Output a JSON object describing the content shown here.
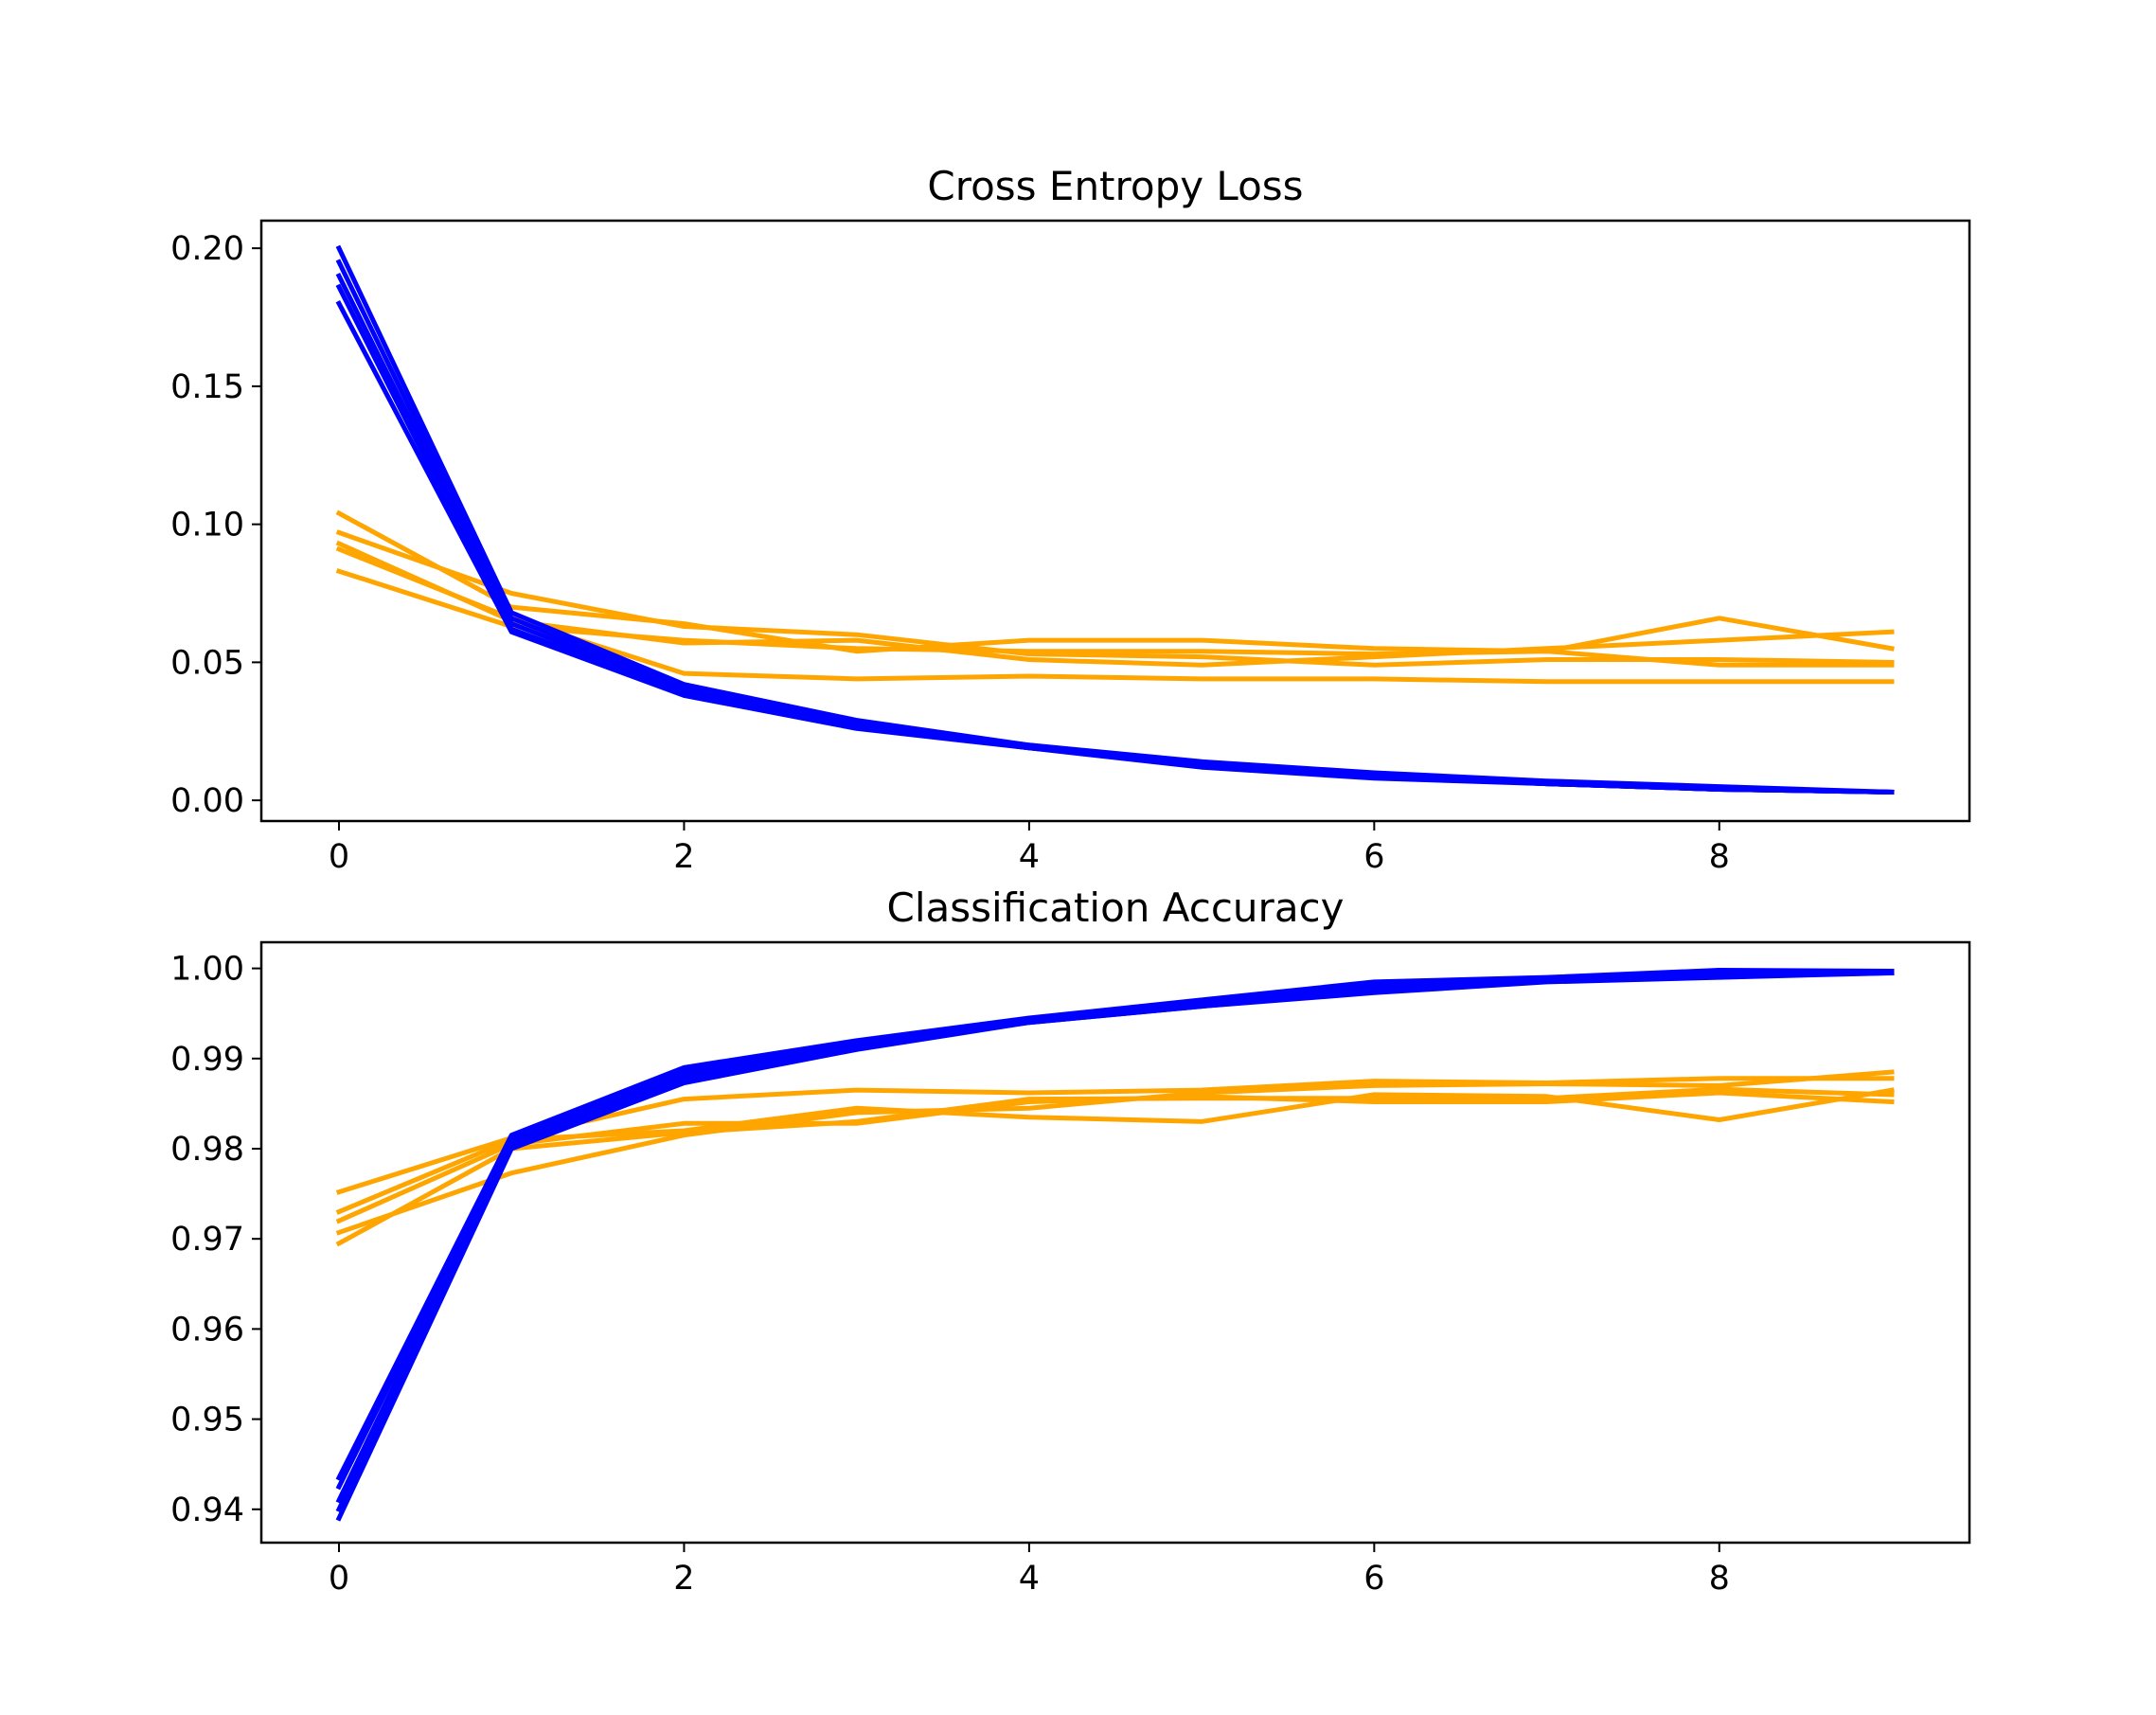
{
  "chart_data": [
    {
      "type": "line",
      "title": "Cross Entropy Loss",
      "xlabel": "",
      "ylabel": "",
      "xlim": [
        -0.45,
        9.45
      ],
      "ylim": [
        -0.0075,
        0.21
      ],
      "xticks": [
        0,
        2,
        4,
        6,
        8
      ],
      "xtick_labels": [
        "0",
        "2",
        "4",
        "6",
        "8"
      ],
      "yticks": [
        0.0,
        0.05,
        0.1,
        0.15,
        0.2
      ],
      "ytick_labels": [
        "0.00",
        "0.05",
        "0.10",
        "0.15",
        "0.20"
      ],
      "grid": false,
      "colors": {
        "train": "#0000ff",
        "test": "#ffa500"
      },
      "x": [
        0,
        1,
        2,
        3,
        4,
        5,
        6,
        7,
        8,
        9
      ],
      "series": [
        {
          "group": "train",
          "values": [
            0.2,
            0.068,
            0.042,
            0.029,
            0.02,
            0.014,
            0.01,
            0.007,
            0.005,
            0.003
          ]
        },
        {
          "group": "train",
          "values": [
            0.195,
            0.066,
            0.041,
            0.028,
            0.02,
            0.013,
            0.009,
            0.006,
            0.004,
            0.003
          ]
        },
        {
          "group": "train",
          "values": [
            0.19,
            0.064,
            0.04,
            0.027,
            0.019,
            0.013,
            0.009,
            0.006,
            0.004,
            0.003
          ]
        },
        {
          "group": "train",
          "values": [
            0.186,
            0.062,
            0.039,
            0.027,
            0.019,
            0.013,
            0.009,
            0.006,
            0.004,
            0.003
          ]
        },
        {
          "group": "train",
          "values": [
            0.18,
            0.061,
            0.038,
            0.026,
            0.019,
            0.012,
            0.008,
            0.006,
            0.004,
            0.003
          ]
        },
        {
          "group": "test",
          "values": [
            0.104,
            0.07,
            0.064,
            0.054,
            0.058,
            0.058,
            0.055,
            0.054,
            0.066,
            0.055
          ]
        },
        {
          "group": "test",
          "values": [
            0.097,
            0.075,
            0.063,
            0.06,
            0.053,
            0.052,
            0.049,
            0.051,
            0.051,
            0.05
          ]
        },
        {
          "group": "test",
          "values": [
            0.093,
            0.065,
            0.057,
            0.058,
            0.051,
            0.049,
            0.052,
            0.055,
            0.058,
            0.061
          ]
        },
        {
          "group": "test",
          "values": [
            0.091,
            0.066,
            0.046,
            0.044,
            0.045,
            0.044,
            0.044,
            0.043,
            0.043,
            0.043
          ]
        },
        {
          "group": "test",
          "values": [
            0.083,
            0.063,
            0.058,
            0.055,
            0.054,
            0.054,
            0.053,
            0.054,
            0.049,
            0.049
          ]
        }
      ]
    },
    {
      "type": "line",
      "title": "Classification Accuracy",
      "xlabel": "",
      "ylabel": "",
      "xlim": [
        -0.45,
        9.45
      ],
      "ylim": [
        0.9363,
        1.0029
      ],
      "xticks": [
        0,
        2,
        4,
        6,
        8
      ],
      "xtick_labels": [
        "0",
        "2",
        "4",
        "6",
        "8"
      ],
      "yticks": [
        0.94,
        0.95,
        0.96,
        0.97,
        0.98,
        0.99,
        1.0
      ],
      "ytick_labels": [
        "0.94",
        "0.95",
        "0.96",
        "0.97",
        "0.98",
        "0.99",
        "1.00"
      ],
      "grid": false,
      "colors": {
        "train": "#0000ff",
        "test": "#ffa500"
      },
      "x": [
        0,
        1,
        2,
        3,
        4,
        5,
        6,
        7,
        8,
        9
      ],
      "series": [
        {
          "group": "train",
          "values": [
            0.9435,
            0.9815,
            0.989,
            0.992,
            0.9945,
            0.9965,
            0.9985,
            0.999,
            0.9998,
            0.9997
          ]
        },
        {
          "group": "train",
          "values": [
            0.9425,
            0.9812,
            0.9885,
            0.9918,
            0.9943,
            0.9962,
            0.9982,
            0.9988,
            0.9995,
            0.9996
          ]
        },
        {
          "group": "train",
          "values": [
            0.941,
            0.9808,
            0.988,
            0.9915,
            0.9941,
            0.996,
            0.9978,
            0.9987,
            0.9993,
            0.9996
          ]
        },
        {
          "group": "train",
          "values": [
            0.94,
            0.9803,
            0.9876,
            0.9913,
            0.994,
            0.9958,
            0.9975,
            0.9986,
            0.9992,
            0.9995
          ]
        },
        {
          "group": "train",
          "values": [
            0.939,
            0.98,
            0.9873,
            0.991,
            0.994,
            0.9958,
            0.9973,
            0.9985,
            0.999,
            0.9995
          ]
        },
        {
          "group": "test",
          "values": [
            0.9752,
            0.9812,
            0.9855,
            0.9865,
            0.9862,
            0.9865,
            0.9875,
            0.9873,
            0.9878,
            0.9878
          ]
        },
        {
          "group": "test",
          "values": [
            0.973,
            0.981,
            0.982,
            0.9845,
            0.9835,
            0.983,
            0.986,
            0.9858,
            0.9832,
            0.9865
          ]
        },
        {
          "group": "test",
          "values": [
            0.972,
            0.9805,
            0.9828,
            0.9828,
            0.9852,
            0.9858,
            0.9852,
            0.9852,
            0.9862,
            0.9852
          ]
        },
        {
          "group": "test",
          "values": [
            0.9707,
            0.9773,
            0.9815,
            0.984,
            0.9845,
            0.9862,
            0.987,
            0.9872,
            0.987,
            0.9885
          ]
        },
        {
          "group": "test",
          "values": [
            0.9695,
            0.98,
            0.9818,
            0.983,
            0.9855,
            0.9856,
            0.9856,
            0.9856,
            0.9866,
            0.986
          ]
        }
      ]
    }
  ]
}
